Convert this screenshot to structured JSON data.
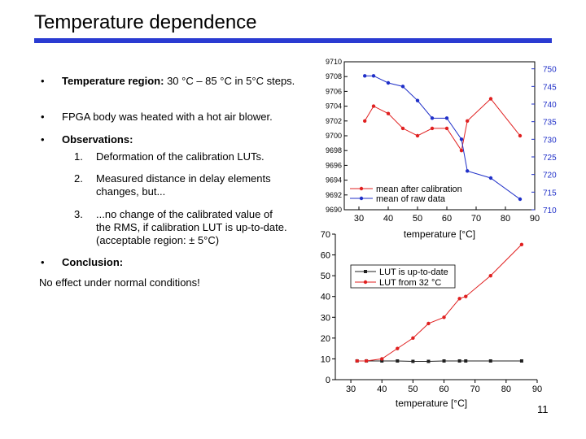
{
  "slide": {
    "title": "Temperature dependence",
    "page_number": "11",
    "bullets": [
      {
        "bold": "Temperature region:",
        "text": " 30 °C – 85 °C in 5°C steps."
      },
      {
        "bold": "",
        "text": "FPGA body was heated with a hot air blower."
      },
      {
        "bold": "Observations:",
        "text": ""
      }
    ],
    "observations": [
      {
        "num": "1.",
        "text": "Deformation of the calibration LUTs."
      },
      {
        "num": "2.",
        "text": "Measured distance in delay elements changes, but..."
      },
      {
        "num": "3.",
        "text": "...no change of the calibrated value of the RMS, if calibration LUT is up-to-date. (acceptable region: ± 5°C)"
      }
    ],
    "conclusion_bullet": "Conclusion:",
    "conclusion_text": "No effect under normal conditions!",
    "bullet_glyph": "•"
  },
  "chart_data": [
    {
      "type": "line",
      "xlabel": "temperature [°C]",
      "ylabel": "",
      "y2label": "",
      "xlim": [
        25,
        90
      ],
      "ylim": [
        9690,
        9710
      ],
      "y2lim": [
        710,
        752
      ],
      "x_ticks": [
        "30",
        "40",
        "50",
        "60",
        "70",
        "80",
        "90"
      ],
      "y_ticks": [
        "9690",
        "9692",
        "9694",
        "9696",
        "9698",
        "9700",
        "9702",
        "9704",
        "9706",
        "9708",
        "9710"
      ],
      "y2_ticks": [
        "710",
        "715",
        "720",
        "725",
        "730",
        "735",
        "740",
        "745",
        "750"
      ],
      "legend_position": "bottom-right",
      "series": [
        {
          "name": "mean after calibration",
          "axis": "left",
          "color": "#e02020",
          "x": [
            32,
            35,
            40,
            45,
            50,
            55,
            60,
            65,
            67,
            75,
            85
          ],
          "y": [
            9702,
            9704,
            9703,
            9701,
            9700,
            9701,
            9701,
            9698,
            9702,
            9705,
            9700
          ]
        },
        {
          "name": "mean of raw data",
          "axis": "right",
          "color": "#1f2fc8",
          "x": [
            32,
            35,
            40,
            45,
            50,
            55,
            60,
            65,
            67,
            75,
            85
          ],
          "y": [
            748,
            748,
            746,
            745,
            741,
            736,
            736,
            730,
            721,
            719,
            713
          ]
        }
      ]
    },
    {
      "type": "line",
      "xlabel": "temperature [°C]",
      "ylabel": "",
      "xlim": [
        25,
        90
      ],
      "ylim": [
        0,
        70
      ],
      "x_ticks": [
        "30",
        "40",
        "50",
        "60",
        "70",
        "80",
        "90"
      ],
      "y_ticks": [
        "0",
        "10",
        "20",
        "30",
        "40",
        "50",
        "60",
        "70"
      ],
      "legend_position": "top-left",
      "series": [
        {
          "name": "LUT is up-to-date",
          "color": "#202020",
          "marker": "square",
          "x": [
            32,
            35,
            40,
            45,
            50,
            55,
            60,
            65,
            67,
            75,
            85
          ],
          "y": [
            9,
            9,
            9,
            9,
            8.8,
            8.8,
            9,
            9,
            9,
            9,
            9
          ]
        },
        {
          "name": "LUT from 32 °C",
          "color": "#e02020",
          "marker": "circle",
          "x": [
            32,
            35,
            40,
            45,
            50,
            55,
            60,
            65,
            67,
            75,
            85
          ],
          "y": [
            9,
            9,
            10,
            15,
            20,
            27,
            30,
            39,
            40,
            50,
            65
          ]
        }
      ]
    }
  ]
}
